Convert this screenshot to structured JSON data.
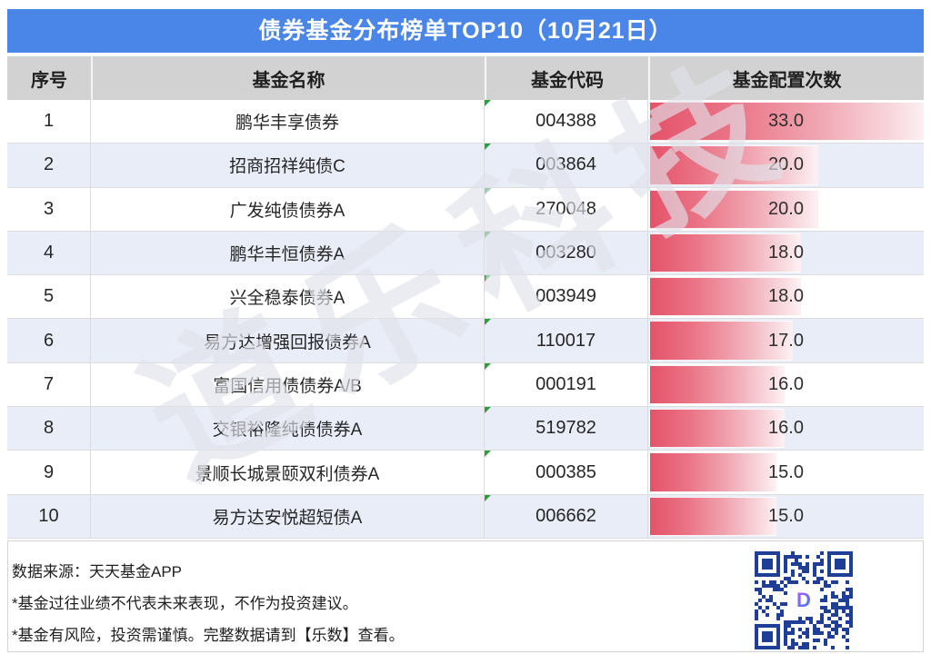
{
  "title": "债券基金分布榜单TOP10（10月21日）",
  "watermark": "道乐科技",
  "colors": {
    "title_bar": "#4a86e8",
    "header_bg": "#d2d2d2",
    "row_alt_bg": "#e9edf8",
    "bar_gradient_start": "#e4536a",
    "bar_gradient_end": "#fdf1f3",
    "qr_navy": "#1f3f96"
  },
  "table": {
    "headers": [
      "序号",
      "基金名称",
      "基金代码",
      "基金配置次数"
    ],
    "max_value": 33,
    "rows": [
      {
        "rank": "1",
        "name": "鹏华丰享债券",
        "code": "004388",
        "value": 33.0,
        "label": "33.0"
      },
      {
        "rank": "2",
        "name": "招商招祥纯债C",
        "code": "003864",
        "value": 20.0,
        "label": "20.0"
      },
      {
        "rank": "3",
        "name": "广发纯债债券A",
        "code": "270048",
        "value": 20.0,
        "label": "20.0"
      },
      {
        "rank": "4",
        "name": "鹏华丰恒债券A",
        "code": "003280",
        "value": 18.0,
        "label": "18.0"
      },
      {
        "rank": "5",
        "name": "兴全稳泰债券A",
        "code": "003949",
        "value": 18.0,
        "label": "18.0"
      },
      {
        "rank": "6",
        "name": "易方达增强回报债券A",
        "code": "110017",
        "value": 17.0,
        "label": "17.0"
      },
      {
        "rank": "7",
        "name": "富国信用债债券A/B",
        "code": "000191",
        "value": 16.0,
        "label": "16.0"
      },
      {
        "rank": "8",
        "name": "交银裕隆纯债债券A",
        "code": "519782",
        "value": 16.0,
        "label": "16.0"
      },
      {
        "rank": "9",
        "name": "景顺长城景颐双利债券A",
        "code": "000385",
        "value": 15.0,
        "label": "15.0"
      },
      {
        "rank": "10",
        "name": "易方达安悦超短债A",
        "code": "006662",
        "value": 15.0,
        "label": "15.0"
      }
    ]
  },
  "footer": {
    "source": "数据来源：天天基金APP",
    "disclaimer1": "*基金过往业绩不代表未来表现，不作为投资建议。",
    "disclaimer2": "*基金有风险，投资需谨慎。完整数据请到【乐数】查看。",
    "qr_logo_letter": "D"
  },
  "chart_data": {
    "type": "bar",
    "orientation": "horizontal",
    "title": "债券基金分布榜单TOP10（10月21日）",
    "categories": [
      "鹏华丰享债券",
      "招商招祥纯债C",
      "广发纯债债券A",
      "鹏华丰恒债券A",
      "兴全稳泰债券A",
      "易方达增强回报债券A",
      "富国信用债债券A/B",
      "交银裕隆纯债债券A",
      "景顺长城景颐双利债券A",
      "易方达安悦超短债A"
    ],
    "fund_codes": [
      "004388",
      "003864",
      "270048",
      "003280",
      "003949",
      "110017",
      "000191",
      "519782",
      "000385",
      "006662"
    ],
    "values": [
      33.0,
      20.0,
      20.0,
      18.0,
      18.0,
      17.0,
      16.0,
      16.0,
      15.0,
      15.0
    ],
    "value_axis_label": "基金配置次数",
    "xlim": [
      0,
      33
    ],
    "grid": false,
    "legend": false,
    "data_labels": [
      "33.0",
      "20.0",
      "20.0",
      "18.0",
      "18.0",
      "17.0",
      "16.0",
      "16.0",
      "15.0",
      "15.0"
    ]
  }
}
